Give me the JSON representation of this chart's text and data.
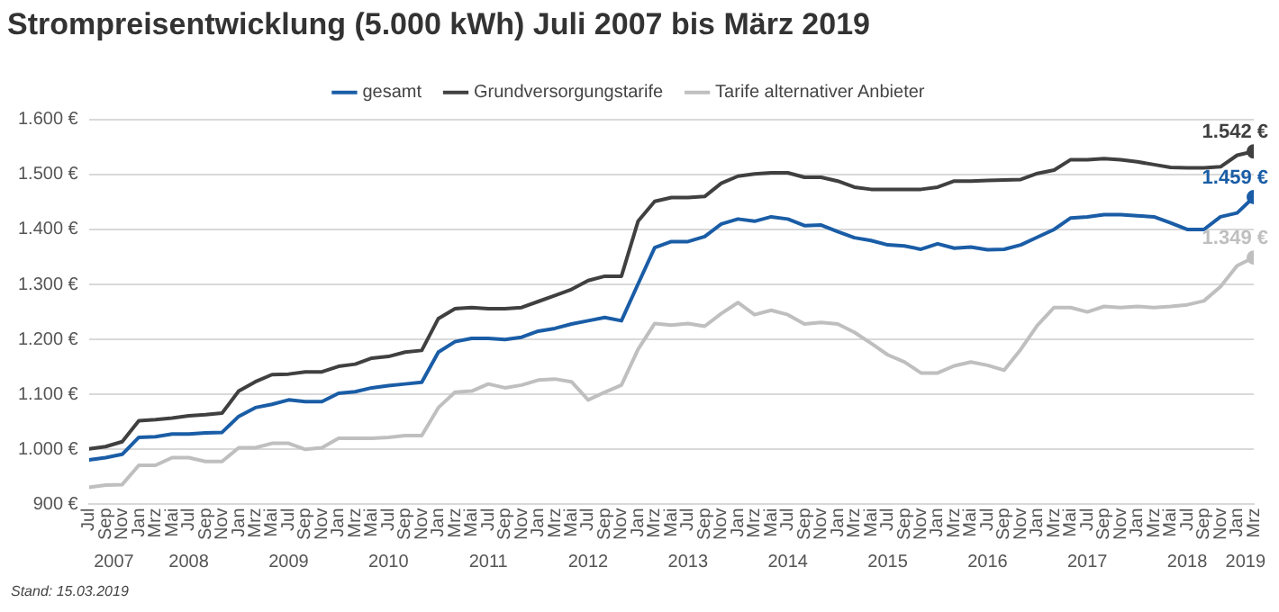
{
  "chart_data": {
    "type": "line",
    "title": "Strompreisentwicklung (5.000 kWh) Juli 2007 bis März 2019",
    "x": [
      "2007-07",
      "2007-09",
      "2007-11",
      "2008-01",
      "2008-03",
      "2008-05",
      "2008-07",
      "2008-09",
      "2008-11",
      "2009-01",
      "2009-03",
      "2009-05",
      "2009-07",
      "2009-09",
      "2009-11",
      "2010-01",
      "2010-03",
      "2010-05",
      "2010-07",
      "2010-09",
      "2010-11",
      "2011-01",
      "2011-03",
      "2011-05",
      "2011-07",
      "2011-09",
      "2011-11",
      "2012-01",
      "2012-03",
      "2012-05",
      "2012-07",
      "2012-09",
      "2012-11",
      "2013-01",
      "2013-03",
      "2013-05",
      "2013-07",
      "2013-09",
      "2013-11",
      "2014-01",
      "2014-03",
      "2014-05",
      "2014-07",
      "2014-09",
      "2014-11",
      "2015-01",
      "2015-03",
      "2015-05",
      "2015-07",
      "2015-09",
      "2015-11",
      "2016-01",
      "2016-03",
      "2016-05",
      "2016-07",
      "2016-09",
      "2016-11",
      "2017-01",
      "2017-03",
      "2017-05",
      "2017-07",
      "2017-09",
      "2017-11",
      "2018-01",
      "2018-03",
      "2018-05",
      "2018-07",
      "2018-09",
      "2018-11",
      "2019-01",
      "2019-03"
    ],
    "series": [
      {
        "name": "gesamt",
        "color": "#1a5da6",
        "values": [
          981,
          985,
          991,
          1022,
          1023,
          1028,
          1028,
          1030,
          1031,
          1060,
          1076,
          1082,
          1090,
          1087,
          1087,
          1102,
          1105,
          1112,
          1116,
          1119,
          1122,
          1177,
          1196,
          1202,
          1202,
          1200,
          1204,
          1215,
          1220,
          1228,
          1234,
          1240,
          1234,
          1301,
          1367,
          1378,
          1378,
          1387,
          1410,
          1419,
          1415,
          1423,
          1419,
          1407,
          1408,
          1396,
          1385,
          1380,
          1372,
          1370,
          1364,
          1374,
          1366,
          1368,
          1363,
          1364,
          1372,
          1386,
          1400,
          1421,
          1423,
          1427,
          1427,
          1425,
          1423,
          1412,
          1400,
          1400,
          1423,
          1430,
          1459
        ],
        "value_labels": [
          null,
          null,
          null,
          null,
          null,
          null,
          null,
          null,
          null,
          null,
          null,
          null,
          null,
          null,
          null,
          null,
          null,
          null,
          null,
          null,
          null,
          null,
          null,
          null,
          null,
          null,
          null,
          null,
          null,
          null,
          null,
          null,
          null,
          null,
          null,
          null,
          null,
          null,
          null,
          null,
          null,
          null,
          null,
          null,
          null,
          null,
          null,
          null,
          null,
          null,
          null,
          null,
          null,
          null,
          null,
          null,
          null,
          null,
          null,
          null,
          null,
          null,
          null,
          null,
          null,
          null,
          null,
          null,
          null,
          null,
          "1.459 €"
        ]
      },
      {
        "name": "Grundversorgungstarife",
        "color": "#404040",
        "values": [
          1001,
          1005,
          1014,
          1052,
          1054,
          1057,
          1061,
          1063,
          1066,
          1106,
          1123,
          1136,
          1137,
          1141,
          1141,
          1151,
          1155,
          1166,
          1169,
          1177,
          1180,
          1238,
          1256,
          1258,
          1256,
          1256,
          1258,
          1269,
          1280,
          1291,
          1307,
          1315,
          1315,
          1415,
          1451,
          1458,
          1458,
          1460,
          1484,
          1497,
          1501,
          1503,
          1503,
          1495,
          1495,
          1488,
          1477,
          1473,
          1473,
          1473,
          1473,
          1477,
          1488,
          1488,
          1489,
          1490,
          1491,
          1502,
          1508,
          1527,
          1527,
          1529,
          1527,
          1523,
          1518,
          1513,
          1512,
          1512,
          1514,
          1535,
          1542
        ],
        "value_labels": [
          null,
          null,
          null,
          null,
          null,
          null,
          null,
          null,
          null,
          null,
          null,
          null,
          null,
          null,
          null,
          null,
          null,
          null,
          null,
          null,
          null,
          null,
          null,
          null,
          null,
          null,
          null,
          null,
          null,
          null,
          null,
          null,
          null,
          null,
          null,
          null,
          null,
          null,
          null,
          null,
          null,
          null,
          null,
          null,
          null,
          null,
          null,
          null,
          null,
          null,
          null,
          null,
          null,
          null,
          null,
          null,
          null,
          null,
          null,
          null,
          null,
          null,
          null,
          null,
          null,
          null,
          null,
          null,
          null,
          null,
          "1.542 €"
        ]
      },
      {
        "name": "Tarife alternativer Anbieter",
        "color": "#bfbfbf",
        "values": [
          931,
          935,
          936,
          971,
          971,
          985,
          985,
          978,
          978,
          1003,
          1003,
          1011,
          1011,
          1000,
          1003,
          1020,
          1020,
          1020,
          1022,
          1025,
          1025,
          1076,
          1104,
          1106,
          1119,
          1112,
          1117,
          1126,
          1128,
          1123,
          1090,
          1104,
          1117,
          1182,
          1229,
          1226,
          1229,
          1224,
          1247,
          1267,
          1245,
          1253,
          1245,
          1228,
          1231,
          1228,
          1213,
          1193,
          1172,
          1159,
          1139,
          1139,
          1152,
          1159,
          1153,
          1144,
          1182,
          1226,
          1258,
          1258,
          1250,
          1260,
          1258,
          1260,
          1258,
          1260,
          1263,
          1270,
          1296,
          1334,
          1349
        ],
        "value_labels": [
          null,
          null,
          null,
          null,
          null,
          null,
          null,
          null,
          null,
          null,
          null,
          null,
          null,
          null,
          null,
          null,
          null,
          null,
          null,
          null,
          null,
          null,
          null,
          null,
          null,
          null,
          null,
          null,
          null,
          null,
          null,
          null,
          null,
          null,
          null,
          null,
          null,
          null,
          null,
          null,
          null,
          null,
          null,
          null,
          null,
          null,
          null,
          null,
          null,
          null,
          null,
          null,
          null,
          null,
          null,
          null,
          null,
          null,
          null,
          null,
          null,
          null,
          null,
          null,
          null,
          null,
          null,
          null,
          null,
          null,
          "1.349 €"
        ]
      }
    ],
    "xlim": [
      "2007-07",
      "2019-03"
    ],
    "xticks": [
      {
        "value": "2007-07",
        "label": "Jul"
      },
      {
        "value": "2007-09",
        "label": "Sep"
      },
      {
        "value": "2007-11",
        "label": "Nov"
      },
      {
        "value": "2008-01",
        "label": "Jan"
      },
      {
        "value": "2008-03",
        "label": "Mrz"
      },
      {
        "value": "2008-05",
        "label": "Mai"
      },
      {
        "value": "2008-07",
        "label": "Jul"
      },
      {
        "value": "2008-09",
        "label": "Sep"
      },
      {
        "value": "2008-11",
        "label": "Nov"
      },
      {
        "value": "2009-01",
        "label": "Jan"
      },
      {
        "value": "2009-03",
        "label": "Mrz"
      },
      {
        "value": "2009-05",
        "label": "Mai"
      },
      {
        "value": "2009-07",
        "label": "Jul"
      },
      {
        "value": "2009-09",
        "label": "Sep"
      },
      {
        "value": "2009-11",
        "label": "Nov"
      },
      {
        "value": "2010-01",
        "label": "Jan"
      },
      {
        "value": "2010-03",
        "label": "Mrz"
      },
      {
        "value": "2010-05",
        "label": "Mai"
      },
      {
        "value": "2010-07",
        "label": "Jul"
      },
      {
        "value": "2010-09",
        "label": "Sep"
      },
      {
        "value": "2010-11",
        "label": "Nov"
      },
      {
        "value": "2011-01",
        "label": "Jan"
      },
      {
        "value": "2011-03",
        "label": "Mrz"
      },
      {
        "value": "2011-05",
        "label": "Mai"
      },
      {
        "value": "2011-07",
        "label": "Jul"
      },
      {
        "value": "2011-09",
        "label": "Sep"
      },
      {
        "value": "2011-11",
        "label": "Nov"
      },
      {
        "value": "2012-01",
        "label": "Jan"
      },
      {
        "value": "2012-03",
        "label": "Mrz"
      },
      {
        "value": "2012-05",
        "label": "Mai"
      },
      {
        "value": "2012-07",
        "label": "Jul"
      },
      {
        "value": "2012-09",
        "label": "Sep"
      },
      {
        "value": "2012-11",
        "label": "Nov"
      },
      {
        "value": "2013-01",
        "label": "Jan"
      },
      {
        "value": "2013-03",
        "label": "Mrz"
      },
      {
        "value": "2013-05",
        "label": "Mai"
      },
      {
        "value": "2013-07",
        "label": "Jul"
      },
      {
        "value": "2013-09",
        "label": "Sep"
      },
      {
        "value": "2013-11",
        "label": "Nov"
      },
      {
        "value": "2014-01",
        "label": "Jan"
      },
      {
        "value": "2014-03",
        "label": "Mrz"
      },
      {
        "value": "2014-05",
        "label": "Mai"
      },
      {
        "value": "2014-07",
        "label": "Jul"
      },
      {
        "value": "2014-09",
        "label": "Sep"
      },
      {
        "value": "2014-11",
        "label": "Nov"
      },
      {
        "value": "2015-01",
        "label": "Jan"
      },
      {
        "value": "2015-03",
        "label": "Mrz"
      },
      {
        "value": "2015-05",
        "label": "Mai"
      },
      {
        "value": "2015-07",
        "label": "Jul"
      },
      {
        "value": "2015-09",
        "label": "Sep"
      },
      {
        "value": "2015-11",
        "label": "Nov"
      },
      {
        "value": "2016-01",
        "label": "Jan"
      },
      {
        "value": "2016-03",
        "label": "Mrz"
      },
      {
        "value": "2016-05",
        "label": "Mai"
      },
      {
        "value": "2016-07",
        "label": "Jul"
      },
      {
        "value": "2016-09",
        "label": "Sep"
      },
      {
        "value": "2016-11",
        "label": "Nov"
      },
      {
        "value": "2017-01",
        "label": "Jan"
      },
      {
        "value": "2017-03",
        "label": "Mrz"
      },
      {
        "value": "2017-05",
        "label": "Mai"
      },
      {
        "value": "2017-07",
        "label": "Jul"
      },
      {
        "value": "2017-09",
        "label": "Sep"
      },
      {
        "value": "2017-11",
        "label": "Nov"
      },
      {
        "value": "2018-01",
        "label": "Jan"
      },
      {
        "value": "2018-03",
        "label": "Mrz"
      },
      {
        "value": "2018-05",
        "label": "Mai"
      },
      {
        "value": "2018-07",
        "label": "Jul"
      },
      {
        "value": "2018-09",
        "label": "Sep"
      },
      {
        "value": "2018-11",
        "label": "Nov"
      },
      {
        "value": "2019-01",
        "label": "Jan"
      },
      {
        "value": "2019-03",
        "label": "Mrz"
      }
    ],
    "x2lim": [
      "2007-07",
      "2019-03"
    ],
    "x2ticks": [
      {
        "value": "2007-10",
        "label": "2007"
      },
      {
        "value": "2008-07",
        "label": "2008"
      },
      {
        "value": "2009-07",
        "label": "2009"
      },
      {
        "value": "2010-07",
        "label": "2010"
      },
      {
        "value": "2011-07",
        "label": "2011"
      },
      {
        "value": "2012-07",
        "label": "2012"
      },
      {
        "value": "2013-07",
        "label": "2013"
      },
      {
        "value": "2014-07",
        "label": "2014"
      },
      {
        "value": "2015-07",
        "label": "2015"
      },
      {
        "value": "2016-07",
        "label": "2016"
      },
      {
        "value": "2017-07",
        "label": "2017"
      },
      {
        "value": "2018-07",
        "label": "2018"
      },
      {
        "value": "2019-02",
        "label": "2019"
      }
    ],
    "ylim": [
      900,
      1600
    ],
    "yticks": [
      {
        "value": 900,
        "label": "900 €"
      },
      {
        "value": 1000,
        "label": "1.000 €"
      },
      {
        "value": 1100,
        "label": "1.100 €"
      },
      {
        "value": 1200,
        "label": "1.200 €"
      },
      {
        "value": 1300,
        "label": "1.300 €"
      },
      {
        "value": 1400,
        "label": "1.400 €"
      },
      {
        "value": 1500,
        "label": "1.500 €"
      },
      {
        "value": 1600,
        "label": "1.600 €"
      }
    ],
    "grid": "y",
    "legend": "top",
    "annotations": [
      "Stand: 15.03.2019"
    ]
  }
}
